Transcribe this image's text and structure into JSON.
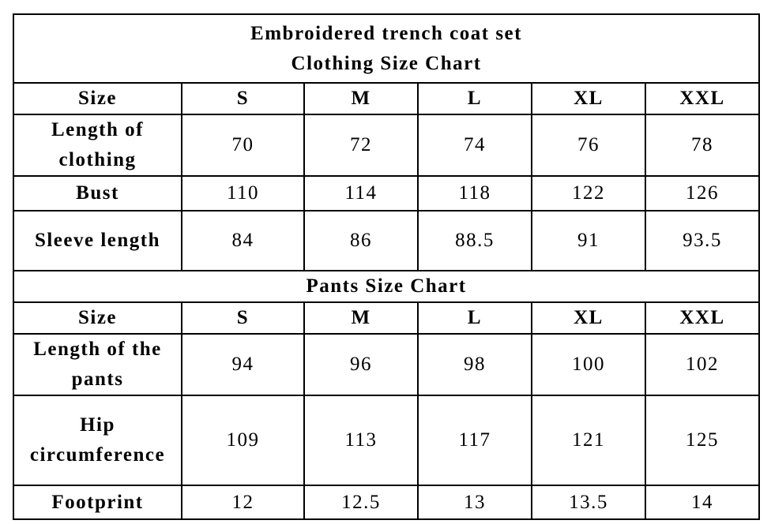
{
  "clothing": {
    "title": [
      "Embroidered trench coat set",
      "Clothing Size Chart"
    ],
    "header": [
      "Size",
      "S",
      "M",
      "L",
      "XL",
      "XXL"
    ],
    "rows": [
      [
        "Length of clothing",
        "70",
        "72",
        "74",
        "76",
        "78"
      ],
      [
        "Bust",
        "110",
        "114",
        "118",
        "122",
        "126"
      ],
      [
        "Sleeve length",
        "84",
        "86",
        "88.5",
        "91",
        "93.5"
      ]
    ]
  },
  "pants": {
    "title": "Pants Size Chart",
    "header": [
      "Size",
      "S",
      "M",
      "L",
      "XL",
      "XXL"
    ],
    "rows": [
      [
        "Length of the pants",
        "94",
        "96",
        "98",
        "100",
        "102"
      ],
      [
        "Hip circumference",
        "109",
        "113",
        "117",
        "121",
        "125"
      ],
      [
        "Footprint",
        "12",
        "12.5",
        "13",
        "13.5",
        "14"
      ]
    ]
  }
}
